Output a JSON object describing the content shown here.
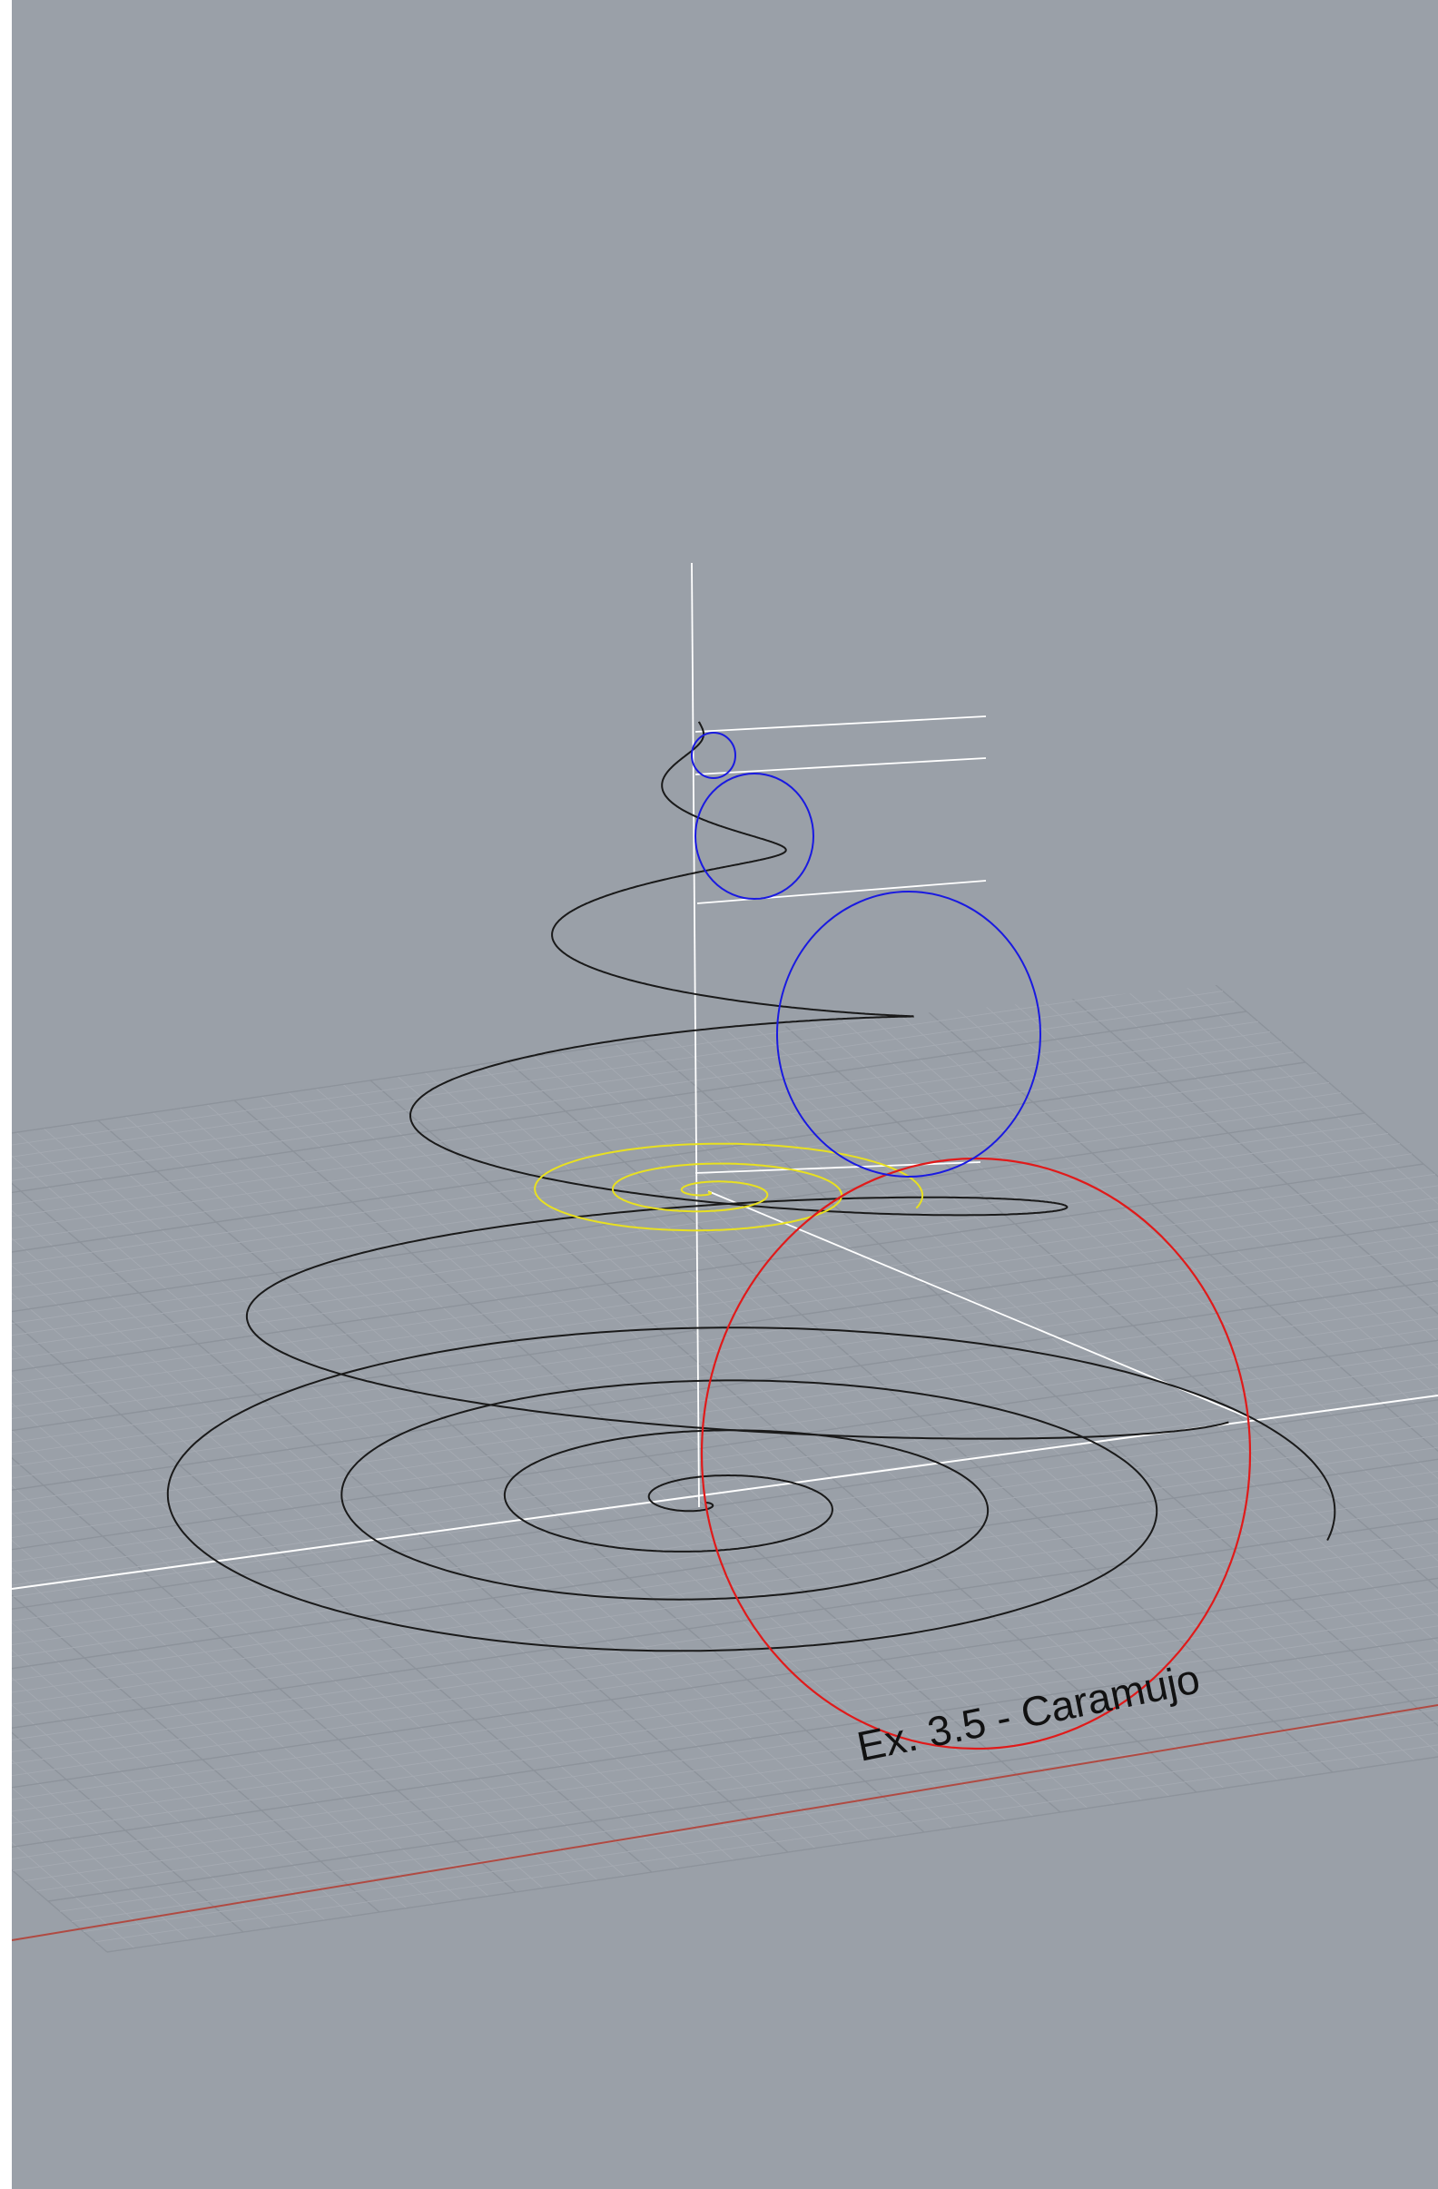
{
  "viewport": {
    "name": "Perspective",
    "background_color": "#9aa0a8"
  },
  "annotation": {
    "text": "Ex. 3.5 - Caramujo"
  },
  "colors": {
    "grid_minor": "#a5aab2",
    "grid_major": "#8d939b",
    "x_axis": "#b04a42",
    "y_axis": "#ffffff",
    "construction_lines": "#ffffff",
    "base_spiral": "#1a1a1a",
    "helix_curve": "#1a1a1a",
    "profile_circle": "#e01a1a",
    "section_circles": "#1a1ae0",
    "scaled_spiral": "#e8e020"
  },
  "scene_objects": [
    "construction-grid",
    "x-axis",
    "y-axis",
    "vertical-axis",
    "base-spiral",
    "helix-spiral",
    "yellow-spiral",
    "red-profile-circle",
    "blue-section-circles",
    "construction-lines",
    "annotation-text"
  ]
}
